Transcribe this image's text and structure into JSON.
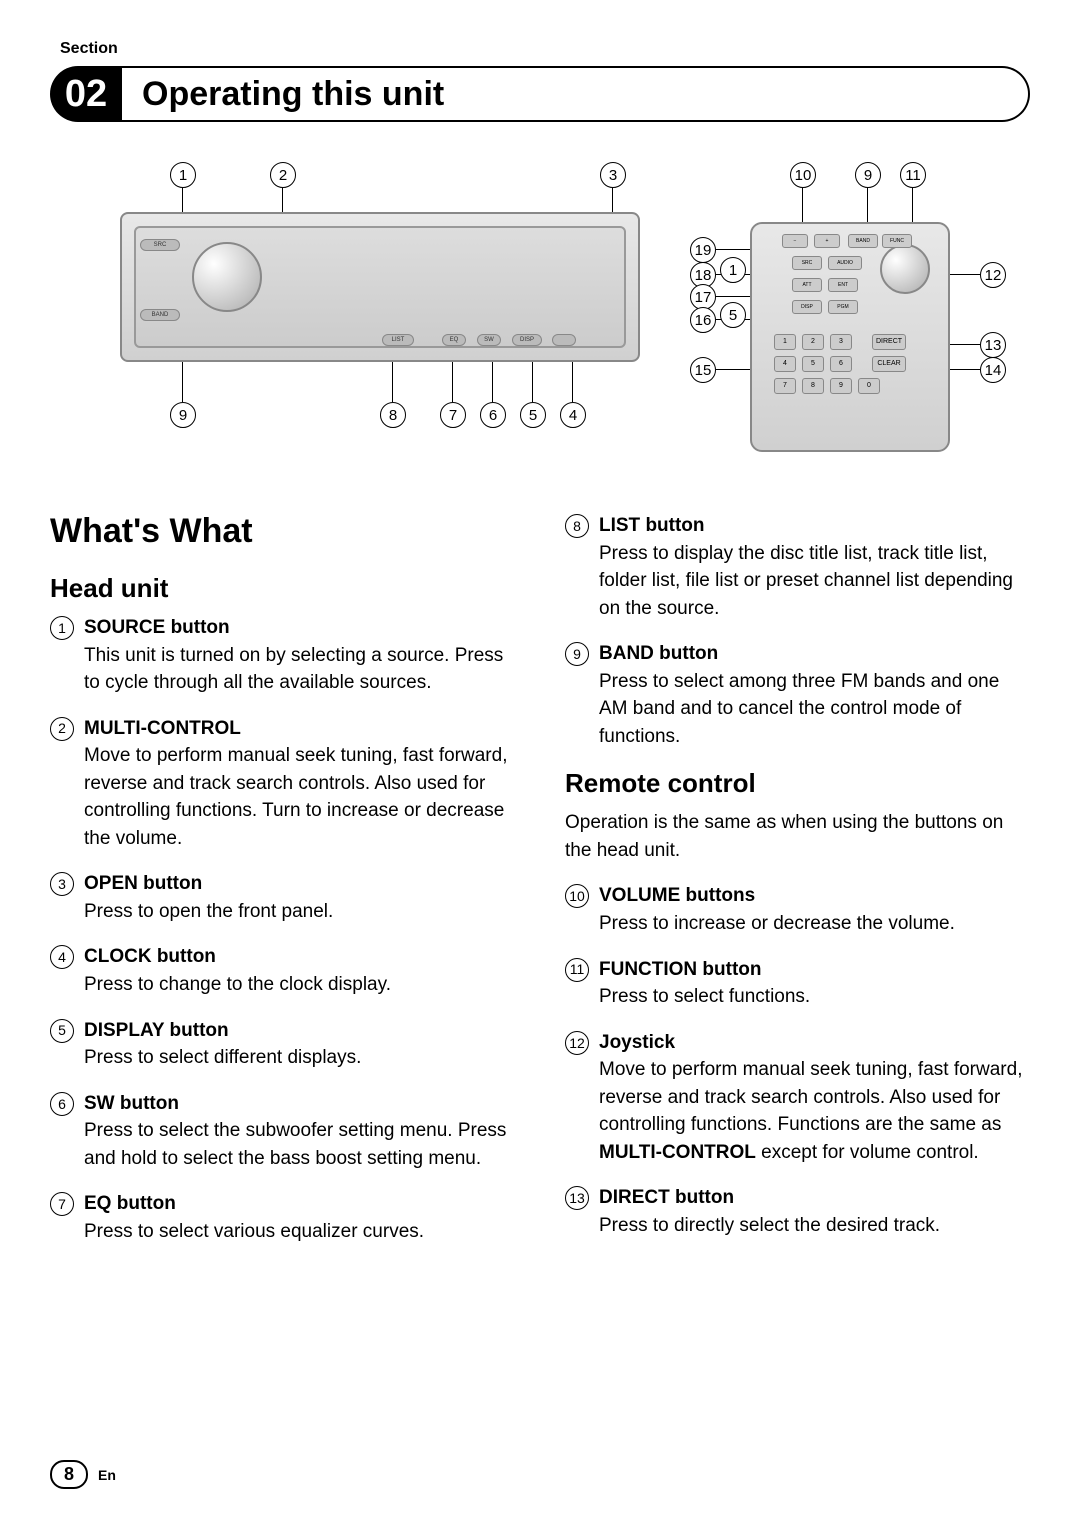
{
  "section_label": "Section",
  "section_number": "02",
  "section_title": "Operating this unit",
  "diagram": {
    "head_unit_callouts_top": [
      "1",
      "2",
      "3"
    ],
    "head_unit_callouts_bottom": [
      "9",
      "8",
      "7",
      "6",
      "5",
      "4"
    ],
    "remote_callouts_top": [
      "10",
      "9",
      "11"
    ],
    "remote_callouts_left": [
      "19",
      "18",
      "17",
      "16",
      "15"
    ],
    "remote_callouts_right": [
      "12",
      "13",
      "14"
    ],
    "remote_callouts_inner": [
      "1",
      "5"
    ]
  },
  "whats_what_heading": "What's What",
  "head_unit_heading": "Head unit",
  "remote_heading": "Remote control",
  "remote_intro": "Operation is the same as when using the buttons on the head unit.",
  "head_items": [
    {
      "n": "1",
      "t": "SOURCE button",
      "d": "This unit is turned on by selecting a source. Press to cycle through all the available sources."
    },
    {
      "n": "2",
      "t": "MULTI-CONTROL",
      "d": "Move to perform manual seek tuning, fast forward, reverse and track search controls. Also used for controlling functions. Turn to increase or decrease the volume."
    },
    {
      "n": "3",
      "t": "OPEN button",
      "d": "Press to open the front panel."
    },
    {
      "n": "4",
      "t": "CLOCK button",
      "d": "Press to change to the clock display."
    },
    {
      "n": "5",
      "t": "DISPLAY button",
      "d": "Press to select different displays."
    },
    {
      "n": "6",
      "t": "SW button",
      "d": "Press to select the subwoofer setting menu. Press and hold to select the bass boost setting menu."
    },
    {
      "n": "7",
      "t": "EQ button",
      "d": "Press to select various equalizer curves."
    }
  ],
  "right_col_head_items": [
    {
      "n": "8",
      "t": "LIST button",
      "d": "Press to display the disc title list, track title list, folder list, file list or preset channel list depending on the source."
    },
    {
      "n": "9",
      "t": "BAND button",
      "d": "Press to select among three FM bands and one AM band and to cancel the control mode of functions."
    }
  ],
  "remote_items": [
    {
      "n": "10",
      "t": "VOLUME buttons",
      "d": "Press to increase or decrease the volume."
    },
    {
      "n": "11",
      "t": "FUNCTION button",
      "d": "Press to select functions."
    },
    {
      "n": "12",
      "t": "Joystick",
      "d": "Move to perform manual seek tuning, fast forward, reverse and track search controls. Also used for controlling functions. Functions are the same as ",
      "bold": "MULTI-CONTROL",
      "after": " except for volume control."
    },
    {
      "n": "13",
      "t": "DIRECT button",
      "d": "Press to directly select the desired track."
    }
  ],
  "page_num": "8",
  "lang": "En",
  "colors": {
    "text": "#000000",
    "bg": "#ffffff",
    "device": "#d0d0d0"
  }
}
